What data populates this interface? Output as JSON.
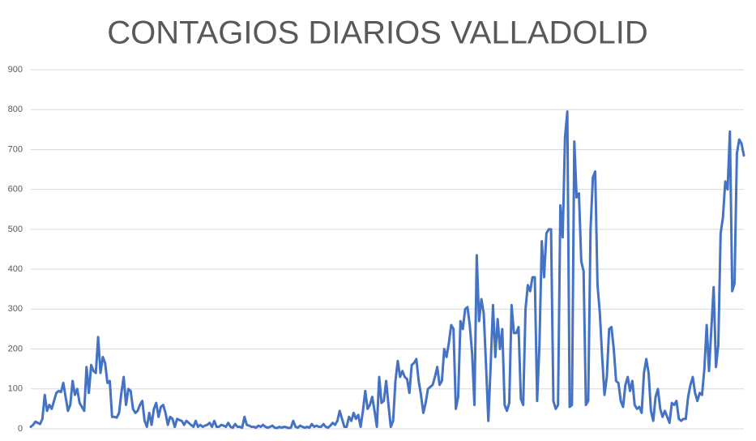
{
  "chart_data": {
    "type": "line",
    "title": "CONTAGIOS DIARIOS VALLADOLID",
    "color": "#4472c4",
    "grid": true,
    "ylim": [
      0,
      900
    ],
    "yticks": [
      0,
      100,
      200,
      300,
      400,
      500,
      600,
      700,
      800,
      900
    ],
    "values": [
      5,
      10,
      18,
      15,
      12,
      25,
      85,
      45,
      60,
      50,
      70,
      90,
      95,
      92,
      115,
      80,
      45,
      60,
      120,
      85,
      100,
      65,
      55,
      45,
      155,
      90,
      160,
      145,
      140,
      230,
      140,
      180,
      165,
      115,
      120,
      30,
      30,
      28,
      40,
      90,
      130,
      60,
      100,
      95,
      50,
      40,
      45,
      60,
      70,
      20,
      5,
      40,
      10,
      50,
      65,
      30,
      55,
      60,
      40,
      10,
      30,
      25,
      5,
      25,
      22,
      20,
      10,
      20,
      15,
      10,
      5,
      20,
      5,
      10,
      5,
      8,
      10,
      15,
      5,
      20,
      5,
      5,
      10,
      8,
      5,
      15,
      5,
      3,
      12,
      5,
      5,
      3,
      30,
      10,
      8,
      5,
      5,
      3,
      8,
      5,
      10,
      5,
      3,
      5,
      8,
      3,
      2,
      5,
      3,
      5,
      4,
      2,
      3,
      20,
      5,
      3,
      8,
      5,
      3,
      5,
      3,
      12,
      5,
      8,
      5,
      5,
      12,
      5,
      3,
      8,
      15,
      10,
      20,
      45,
      25,
      5,
      5,
      30,
      20,
      40,
      25,
      35,
      5,
      45,
      95,
      50,
      60,
      80,
      45,
      5,
      130,
      65,
      70,
      120,
      60,
      5,
      20,
      120,
      170,
      130,
      145,
      130,
      125,
      90,
      160,
      165,
      175,
      120,
      85,
      40,
      65,
      100,
      105,
      110,
      130,
      155,
      110,
      120,
      200,
      180,
      215,
      260,
      250,
      50,
      80,
      270,
      250,
      300,
      305,
      260,
      190,
      60,
      435,
      270,
      325,
      290,
      160,
      20,
      160,
      310,
      180,
      275,
      200,
      250,
      60,
      45,
      65,
      310,
      240,
      240,
      255,
      75,
      60,
      300,
      360,
      345,
      380,
      380,
      70,
      210,
      470,
      380,
      490,
      500,
      500,
      70,
      50,
      60,
      560,
      480,
      730,
      795,
      55,
      60,
      720,
      580,
      590,
      420,
      395,
      60,
      70,
      500,
      630,
      645,
      360,
      290,
      180,
      85,
      130,
      250,
      255,
      200,
      120,
      115,
      70,
      55,
      110,
      130,
      95,
      120,
      60,
      50,
      55,
      40,
      140,
      175,
      140,
      45,
      20,
      80,
      100,
      50,
      30,
      45,
      30,
      15,
      65,
      60,
      70,
      25,
      20,
      25,
      25,
      80,
      110,
      130,
      90,
      70,
      90,
      85,
      150,
      260,
      145,
      250,
      355,
      155,
      210,
      490,
      530,
      620,
      600,
      745,
      345,
      365,
      690,
      725,
      715,
      685
    ]
  }
}
